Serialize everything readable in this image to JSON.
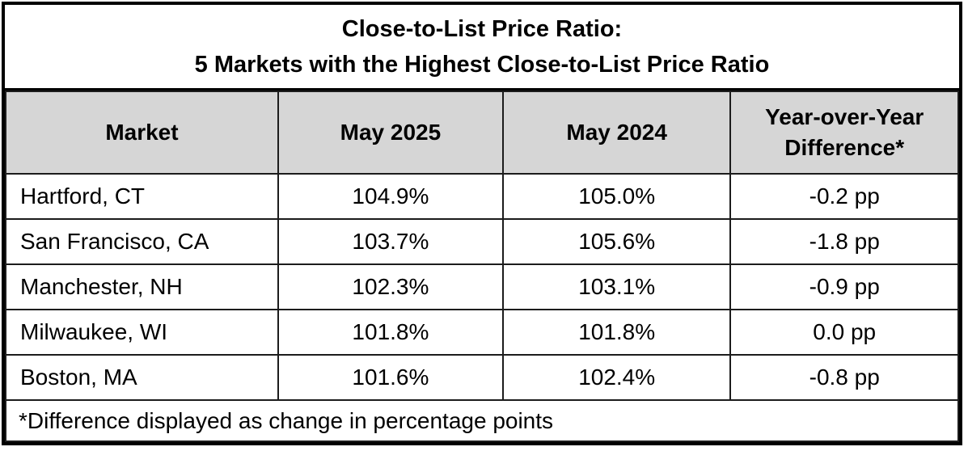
{
  "title": {
    "line1": "Close-to-List Price Ratio:",
    "line2": "5 Markets with the Highest Close-to-List Price Ratio"
  },
  "colors": {
    "header_bg": "#d6d6d6",
    "border": "#000000",
    "background": "#ffffff",
    "text": "#000000"
  },
  "chart_data": {
    "type": "table",
    "title": "Close-to-List Price Ratio: 5 Markets with the Highest Close-to-List Price Ratio",
    "columns": [
      "Market",
      "May 2025",
      "May 2024",
      "Year-over-Year Difference*"
    ],
    "rows": [
      [
        "Hartford, CT",
        "104.9%",
        "105.0%",
        "-0.2 pp"
      ],
      [
        "San Francisco, CA",
        "103.7%",
        "105.6%",
        "-1.8 pp"
      ],
      [
        "Manchester, NH",
        "102.3%",
        "103.1%",
        "-0.9 pp"
      ],
      [
        "Milwaukee, WI",
        "101.8%",
        "101.8%",
        "0.0 pp"
      ],
      [
        "Boston, MA",
        "101.6%",
        "102.4%",
        "-0.8 pp"
      ]
    ],
    "footnote": "*Difference displayed as change in percentage points",
    "layout": {
      "header_alignment": "center",
      "market_column_alignment": "left",
      "value_columns_alignment": "center",
      "grid": "on"
    }
  }
}
